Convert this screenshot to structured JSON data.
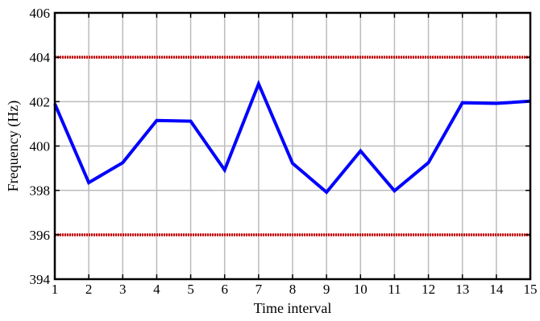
{
  "chart_data": {
    "type": "line",
    "title": "",
    "xlabel": "Time interval",
    "ylabel": "Frequency (Hz)",
    "xlim": [
      1,
      15
    ],
    "ylim": [
      394,
      406
    ],
    "xticks": [
      1,
      2,
      3,
      4,
      5,
      6,
      7,
      8,
      9,
      10,
      11,
      12,
      13,
      14,
      15
    ],
    "yticks": [
      394,
      396,
      398,
      400,
      402,
      404,
      406
    ],
    "grid": true,
    "series": [
      {
        "x": [
          1,
          2,
          3,
          4,
          5,
          6,
          7,
          8,
          9,
          10,
          11,
          12,
          13,
          14,
          15
        ],
        "values": [
          401.9,
          398.35,
          399.25,
          401.15,
          401.12,
          398.92,
          402.8,
          399.22,
          397.92,
          399.78,
          397.98,
          399.25,
          401.95,
          401.92,
          402.02
        ],
        "color": "#0000ff"
      }
    ],
    "reference_lines": [
      {
        "y": 404,
        "color": "#cc0000"
      },
      {
        "y": 396,
        "color": "#cc0000"
      }
    ]
  }
}
